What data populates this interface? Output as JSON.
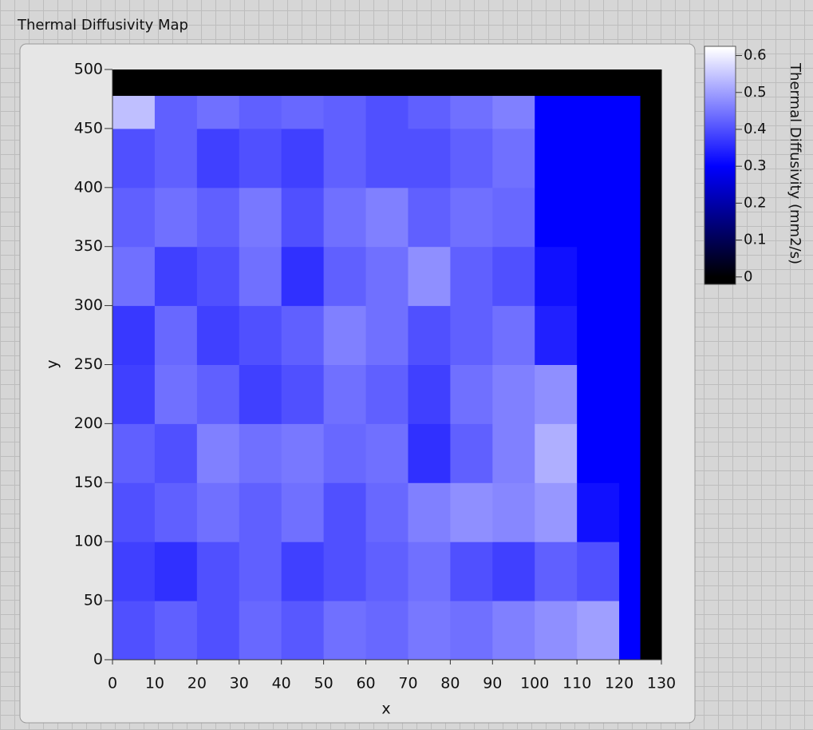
{
  "chart_data": {
    "type": "heatmap",
    "title": "Thermal Diffusivity Map",
    "x_label": "x",
    "y_label": "y",
    "colorbar_label": "Thermal Diffusivity (mm2/s)",
    "xlim": [
      0,
      130
    ],
    "ylim": [
      0,
      500
    ],
    "zlim": [
      -0.02,
      0.625
    ],
    "xticks": [
      0,
      10,
      20,
      30,
      40,
      50,
      60,
      70,
      80,
      90,
      100,
      110,
      120,
      130
    ],
    "yticks": [
      0,
      50,
      100,
      150,
      200,
      250,
      300,
      350,
      400,
      450,
      500
    ],
    "zticks": [
      0,
      0.1,
      0.2,
      0.3,
      0.4,
      0.5,
      0.6
    ],
    "colormap": [
      {
        "value": 0,
        "color": "#000000"
      },
      {
        "value": 0.3,
        "color": "#0000ff"
      },
      {
        "value": 0.62,
        "color": "#ffffff"
      }
    ],
    "x_edges": [
      0,
      10,
      20,
      30,
      40,
      50,
      60,
      70,
      80,
      90,
      100,
      110,
      120,
      125,
      130
    ],
    "y_edges": [
      0,
      50,
      100,
      150,
      200,
      250,
      300,
      350,
      400,
      450,
      478,
      500
    ],
    "z": [
      [
        0.4,
        0.42,
        0.4,
        0.43,
        0.41,
        0.44,
        0.43,
        0.45,
        0.44,
        0.46,
        0.48,
        0.5,
        0.3,
        0
      ],
      [
        0.38,
        0.36,
        0.4,
        0.42,
        0.38,
        0.4,
        0.42,
        0.44,
        0.4,
        0.38,
        0.42,
        0.4,
        0.3,
        0
      ],
      [
        0.4,
        0.42,
        0.44,
        0.42,
        0.44,
        0.4,
        0.43,
        0.46,
        0.48,
        0.47,
        0.49,
        0.32,
        0.3,
        0
      ],
      [
        0.42,
        0.4,
        0.46,
        0.44,
        0.45,
        0.43,
        0.44,
        0.36,
        0.42,
        0.46,
        0.52,
        0.3,
        0.3,
        0
      ],
      [
        0.38,
        0.44,
        0.42,
        0.38,
        0.4,
        0.44,
        0.42,
        0.38,
        0.44,
        0.46,
        0.48,
        0.3,
        0.3,
        0
      ],
      [
        0.37,
        0.43,
        0.38,
        0.4,
        0.42,
        0.46,
        0.44,
        0.4,
        0.42,
        0.44,
        0.34,
        0.3,
        0.3,
        0
      ],
      [
        0.44,
        0.38,
        0.4,
        0.44,
        0.36,
        0.42,
        0.44,
        0.48,
        0.42,
        0.4,
        0.32,
        0.3,
        0.3,
        0
      ],
      [
        0.42,
        0.44,
        0.42,
        0.45,
        0.4,
        0.44,
        0.46,
        0.42,
        0.44,
        0.43,
        0.3,
        0.3,
        0.3,
        0
      ],
      [
        0.4,
        0.42,
        0.38,
        0.4,
        0.38,
        0.42,
        0.4,
        0.4,
        0.42,
        0.44,
        0.3,
        0.3,
        0.3,
        0
      ],
      [
        0.54,
        0.42,
        0.44,
        0.42,
        0.43,
        0.42,
        0.4,
        0.42,
        0.44,
        0.46,
        0.3,
        0.3,
        0.3,
        0
      ],
      [
        0,
        0,
        0,
        0,
        0,
        0,
        0,
        0,
        0,
        0,
        0,
        0,
        0,
        0
      ]
    ]
  }
}
